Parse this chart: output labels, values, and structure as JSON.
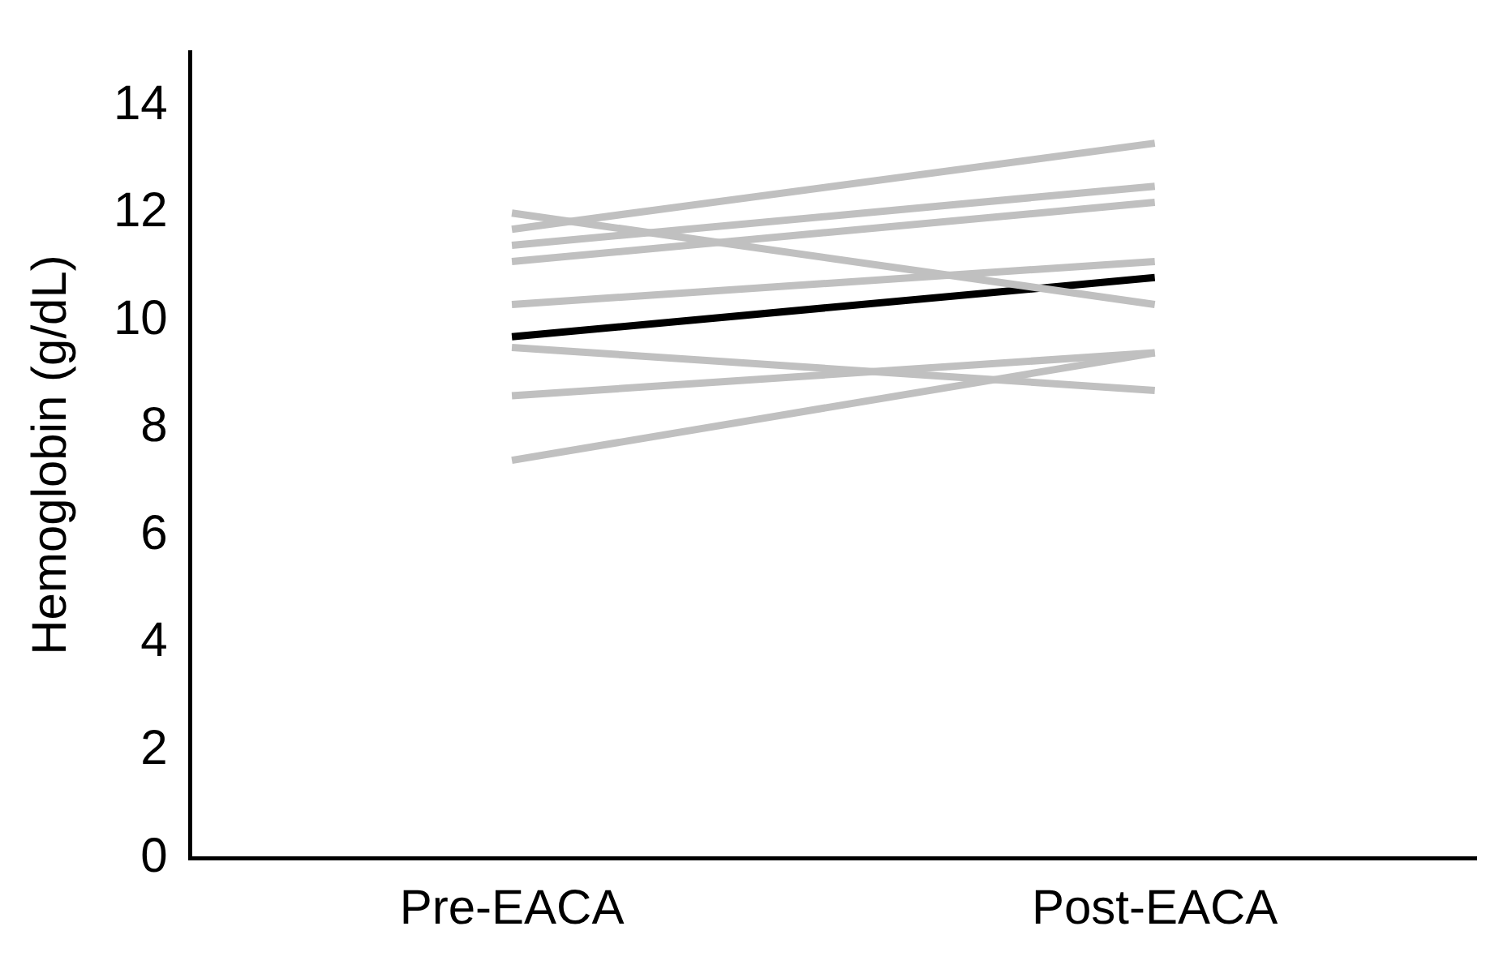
{
  "chart_data": {
    "type": "line",
    "ylabel": "Hemoglobin (g/dL)",
    "categories": [
      "Pre-EACA",
      "Post-EACA"
    ],
    "ylim": [
      0,
      15
    ],
    "yticks": [
      0,
      2,
      4,
      6,
      8,
      10,
      12,
      14
    ],
    "grid": false,
    "legend": false,
    "marker": "none",
    "line_style": "solid",
    "series": [
      {
        "color": "#c0c0c0",
        "values": [
          11.7,
          13.3
        ]
      },
      {
        "color": "#c0c0c0",
        "values": [
          12.0,
          10.3
        ]
      },
      {
        "color": "#c0c0c0",
        "values": [
          11.4,
          12.5
        ]
      },
      {
        "color": "#c0c0c0",
        "values": [
          11.1,
          12.2
        ]
      },
      {
        "color": "#c0c0c0",
        "values": [
          10.3,
          11.1
        ]
      },
      {
        "color": "#c0c0c0",
        "values": [
          9.5,
          8.7
        ]
      },
      {
        "color": "#c0c0c0",
        "values": [
          8.6,
          9.4
        ]
      },
      {
        "color": "#c0c0c0",
        "values": [
          7.4,
          9.4
        ]
      },
      {
        "color": "#000000",
        "values": [
          9.7,
          10.8
        ]
      }
    ]
  }
}
